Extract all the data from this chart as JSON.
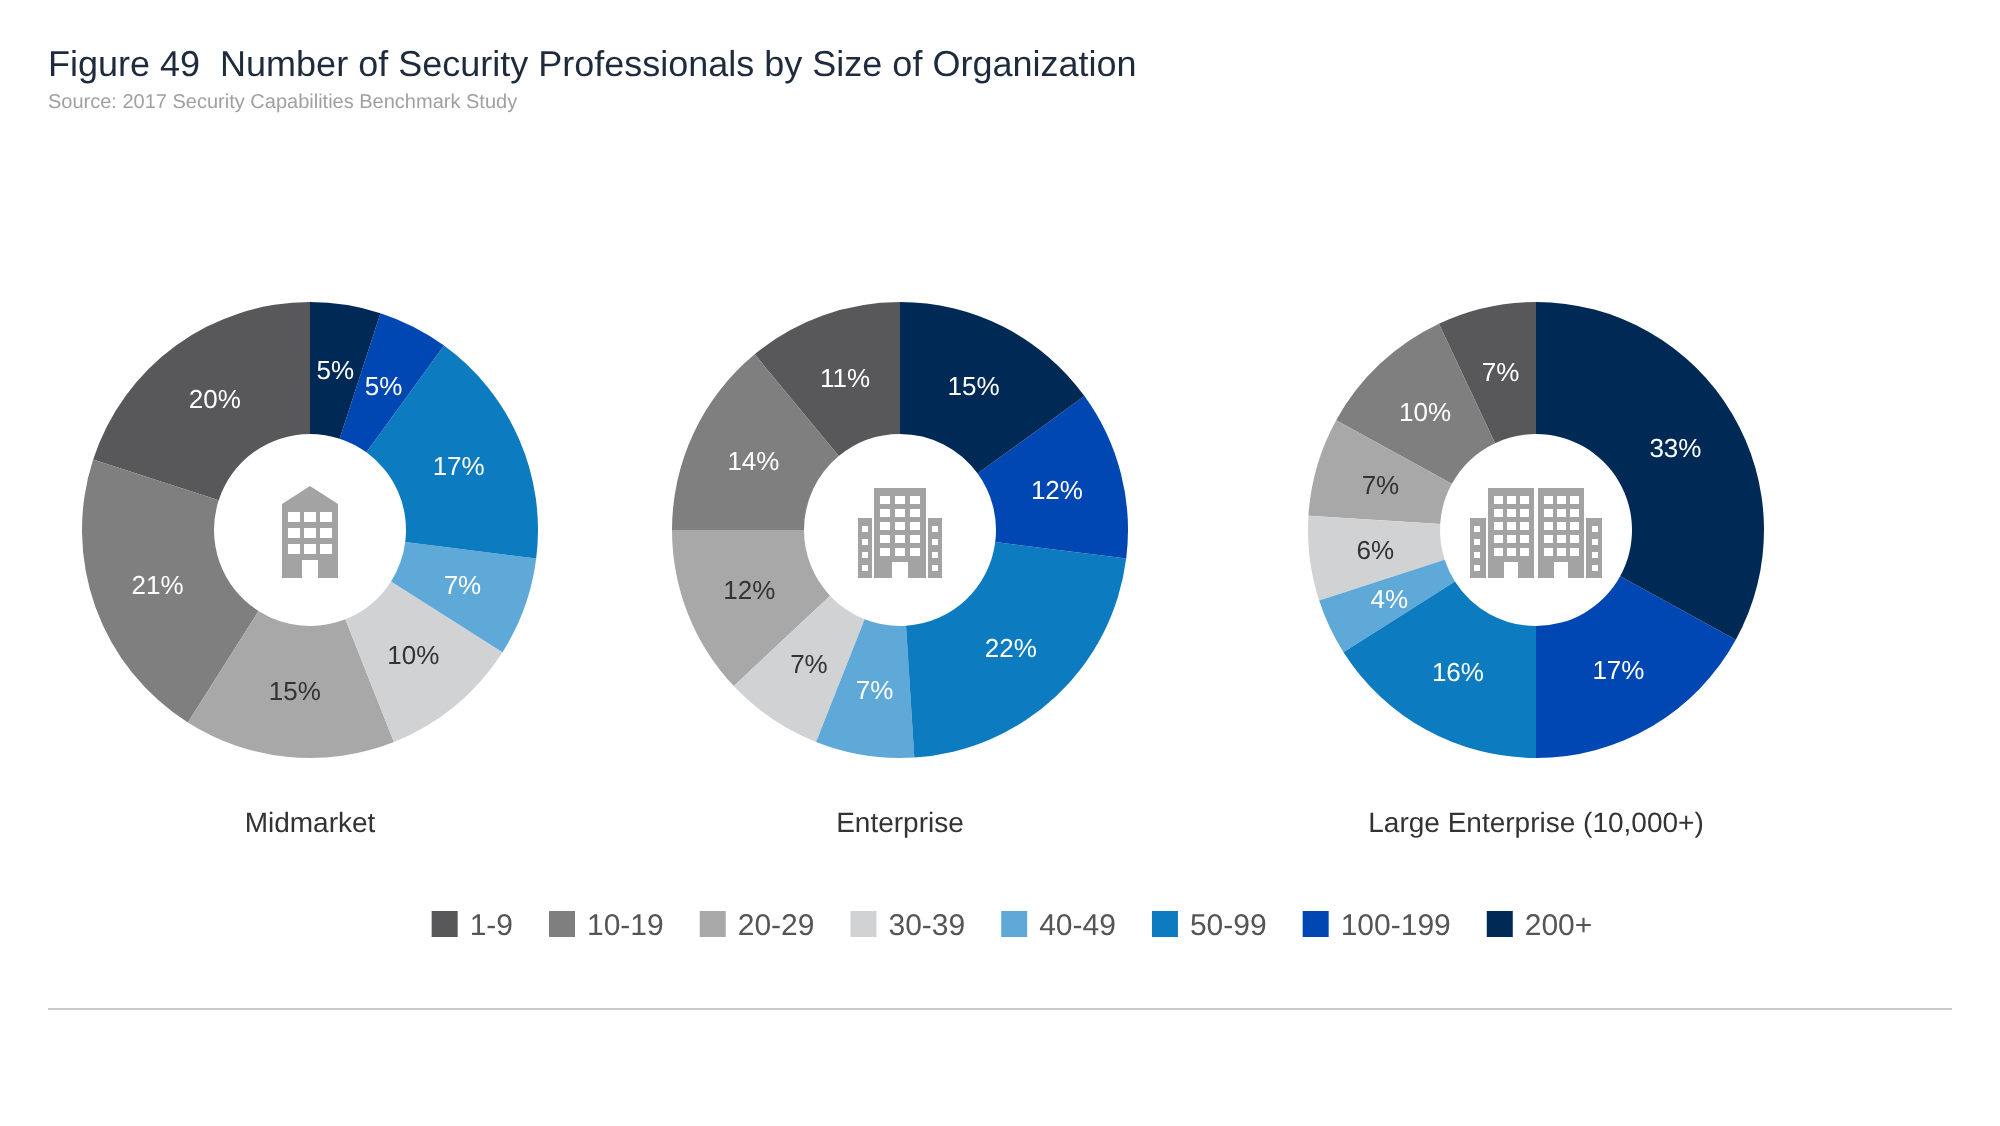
{
  "chart_data": [
    {
      "type": "donut",
      "title": "Figure 49  Number of Security Professionals by Size of Organization",
      "annotations": [
        "Source: 2017 Security Capabilities Benchmark Study"
      ],
      "xlabel": "Midmarket",
      "categories": [
        "1-9",
        "10-19",
        "20-29",
        "30-39",
        "40-49",
        "50-99",
        "100-199",
        "200+"
      ],
      "values": [
        20,
        21,
        15,
        10,
        7,
        17,
        5,
        5
      ],
      "value_labels": [
        "20%",
        "21%",
        "15%",
        "10%",
        "7%",
        "17%",
        "5%",
        "5%"
      ],
      "colors": [
        "#58585a",
        "#7f7f80",
        "#a8a8a8",
        "#d0d2d4",
        "#5fa9d9",
        "#0d7bc0",
        "#0047b3",
        "#002a55"
      ],
      "legend": "bottom"
    },
    {
      "type": "donut",
      "xlabel": "Enterprise",
      "values": [
        11,
        14,
        12,
        7,
        7,
        22,
        12,
        15
      ],
      "value_labels": [
        "11%",
        "14%",
        "12%",
        "7%",
        "7%",
        "22%",
        "12%",
        "15%"
      ],
      "colors": [
        "#58585a",
        "#7f7f80",
        "#a8a8a8",
        "#d0d2d4",
        "#5fa9d9",
        "#0d7bc0",
        "#0047b3",
        "#002a55"
      ]
    },
    {
      "type": "donut",
      "xlabel": "Large Enterprise (10,000+)",
      "values": [
        7,
        10,
        7,
        6,
        4,
        16,
        17,
        33
      ],
      "value_labels": [
        "7%",
        "10%",
        "7%",
        "6%",
        "4%",
        "16%",
        "17%",
        "33%"
      ],
      "colors": [
        "#58585a",
        "#7f7f80",
        "#a8a8a8",
        "#d0d2d4",
        "#5fa9d9",
        "#0d7bc0",
        "#0047b3",
        "#002a55"
      ]
    }
  ]
}
